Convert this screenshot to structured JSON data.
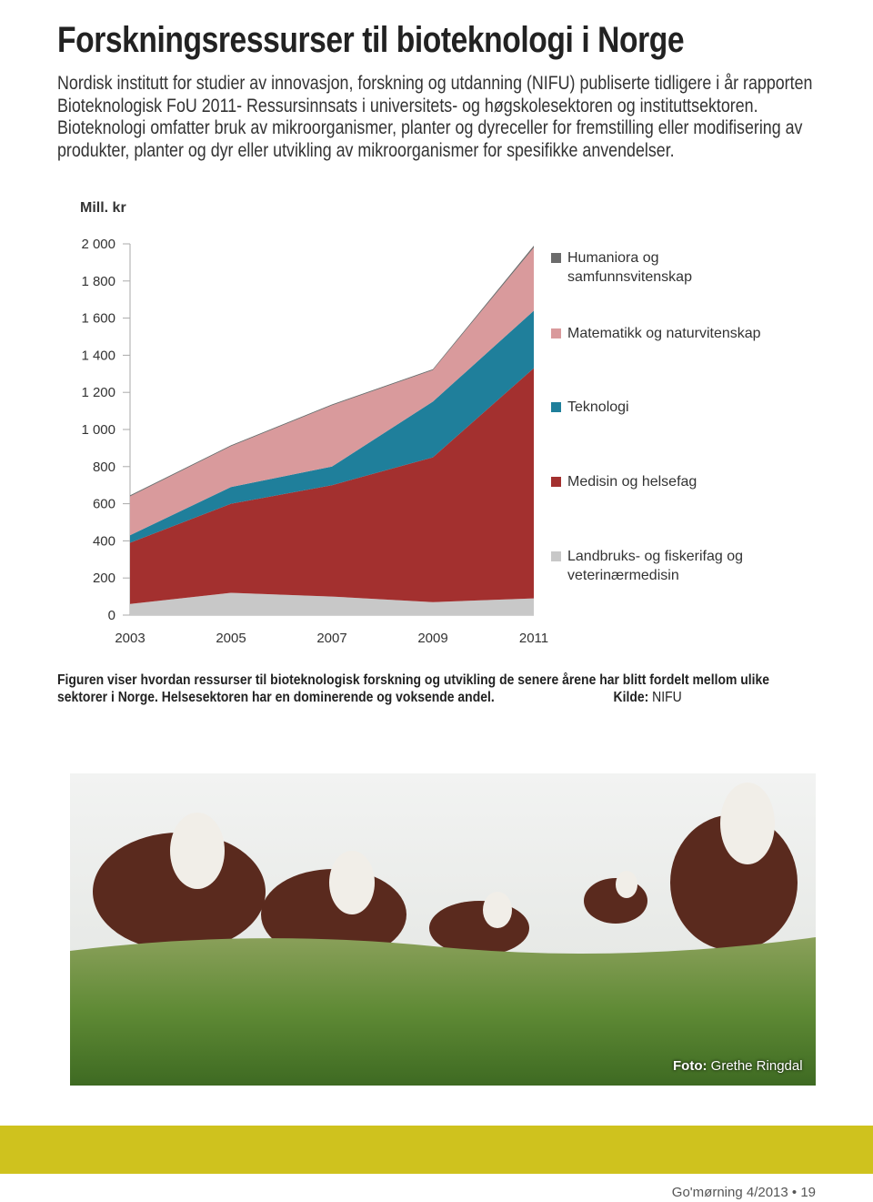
{
  "title": "Forskningsressurser til bioteknologi i Norge",
  "intro": "Nordisk institutt for studier av innovasjon, forskning og utdanning (NIFU) publiserte tidligere i år rapporten Bioteknologisk FoU 2011- Ressursinnsats i universitets- og høgskolesektoren og instituttsektoren. Bioteknologi omfatter bruk av mikroorganismer, planter og dyreceller for fremstilling eller modifisering av produkter, planter og dyr eller utvikling av mikroorganismer for spesifikke anvendelser.",
  "chart_data": {
    "type": "stacked_area",
    "ylabel": "Mill. kr",
    "x": [
      2003,
      2005,
      2007,
      2009,
      2011
    ],
    "ylim": [
      0,
      2000
    ],
    "yticks": [
      0,
      200,
      400,
      600,
      800,
      {
        "value": 1000,
        "label": "1 000"
      },
      {
        "value": 1200,
        "label": "1 200"
      },
      {
        "value": 1400,
        "label": "1 400"
      },
      {
        "value": 1600,
        "label": "1 600"
      },
      {
        "value": 1800,
        "label": "1 800"
      },
      {
        "value": 2000,
        "label": "2 000"
      }
    ],
    "grid": false,
    "series": [
      {
        "name": "Landbruks- og fiskerifag og veterinærmedisin",
        "color": "#c8c8c8",
        "values": [
          60,
          120,
          100,
          70,
          90
        ]
      },
      {
        "name": "Medisin og helsefag",
        "color": "#a3302f",
        "values": [
          330,
          480,
          600,
          780,
          1240
        ]
      },
      {
        "name": "Teknologi",
        "color": "#1f7f9b",
        "values": [
          40,
          90,
          100,
          300,
          310
        ]
      },
      {
        "name": "Matematikk og naturvitenskap",
        "color": "#d99a9c",
        "values": [
          210,
          220,
          330,
          170,
          340
        ]
      },
      {
        "name": "Humaniora og samfunnsvitenskap",
        "color": "#6b6b6b",
        "values": [
          5,
          5,
          5,
          5,
          10
        ]
      }
    ]
  },
  "caption": "Figuren viser hvordan ressurser til bioteknologisk forskning og utvikling de senere årene har blitt fordelt mellom ulike sektorer i Norge. Helsesektoren har en dominerende og voksende andel.",
  "source_label": "Kilde:",
  "source": "NIFU",
  "photo_credit_label": "Foto:",
  "photo_credit": "Grethe Ringdal",
  "footer": "Go'mørning 4/2013 • 19"
}
